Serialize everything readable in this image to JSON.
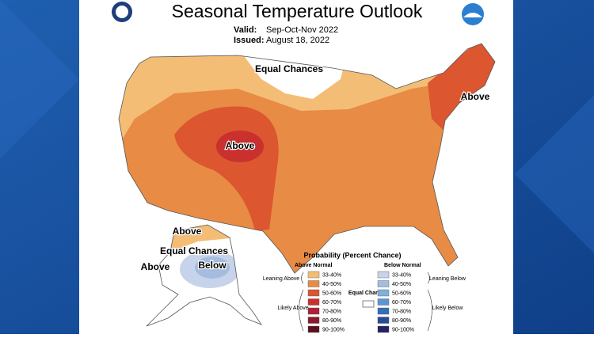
{
  "header": {
    "title": "Seasonal Temperature Outlook",
    "valid_label": "Valid:",
    "valid": "Sep-Oct-Nov 2022",
    "issued_label": "Issued:",
    "issued": "August 18, 2022"
  },
  "map": {
    "labels": [
      "Equal Chances",
      "Above",
      "Above",
      "Above",
      "Equal Chances",
      "Above",
      "Below"
    ]
  },
  "legend": {
    "title": "Probability (Percent Chance)",
    "above_header": "Above Normal",
    "below_header": "Below Normal",
    "above": [
      {
        "range": "33-40%",
        "color": "#f4bd76"
      },
      {
        "range": "40-50%",
        "color": "#e88b45"
      },
      {
        "range": "50-60%",
        "color": "#dc5630"
      },
      {
        "range": "60-70%",
        "color": "#c9302e"
      },
      {
        "range": "70-80%",
        "color": "#b21f36"
      },
      {
        "range": "80-90%",
        "color": "#8a1a2c"
      },
      {
        "range": "90-100%",
        "color": "#5a1020"
      }
    ],
    "below": [
      {
        "range": "33-40%",
        "color": "#c7d3ea"
      },
      {
        "range": "40-50%",
        "color": "#a4bddf"
      },
      {
        "range": "50-60%",
        "color": "#7fb1de"
      },
      {
        "range": "60-70%",
        "color": "#5a96d5"
      },
      {
        "range": "70-80%",
        "color": "#3270ba"
      },
      {
        "range": "80-90%",
        "color": "#2a4a98"
      },
      {
        "range": "90-100%",
        "color": "#232266"
      }
    ],
    "equal_chances": "Equal Chances",
    "leaning_above": "Leaning Above",
    "likely_above": "Likely Above",
    "leaning_below": "Leaning Below",
    "likely_below": "Likely Below"
  }
}
